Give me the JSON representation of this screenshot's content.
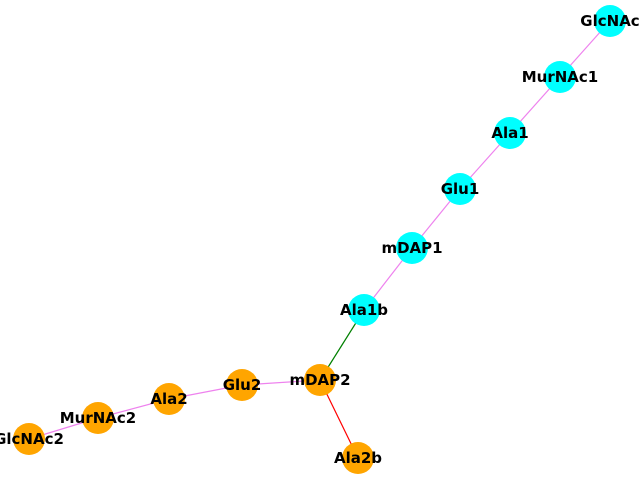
{
  "graph": {
    "nodes": [
      {
        "id": "GlcNAc1",
        "label": "GlcNAc",
        "color": "#00ffff"
      },
      {
        "id": "MurNAc1",
        "label": "MurNAc1",
        "color": "#00ffff"
      },
      {
        "id": "Ala1",
        "label": "Ala1",
        "color": "#00ffff"
      },
      {
        "id": "Glu1",
        "label": "Glu1",
        "color": "#00ffff"
      },
      {
        "id": "mDAP1",
        "label": "mDAP1",
        "color": "#00ffff"
      },
      {
        "id": "Ala1b",
        "label": "Ala1b",
        "color": "#00ffff"
      },
      {
        "id": "mDAP2",
        "label": "mDAP2",
        "color": "#ffa500"
      },
      {
        "id": "Glu2",
        "label": "Glu2",
        "color": "#ffa500"
      },
      {
        "id": "Ala2",
        "label": "Ala2",
        "color": "#ffa500"
      },
      {
        "id": "MurNAc2",
        "label": "MurNAc2",
        "color": "#ffa500"
      },
      {
        "id": "GlcNAc2",
        "label": "GlcNAc2",
        "color": "#ffa500"
      },
      {
        "id": "Ala2b",
        "label": "Ala2b",
        "color": "#ffa500"
      }
    ],
    "edges": [
      {
        "source": "GlcNAc1",
        "target": "MurNAc1",
        "color": "#ee82ee"
      },
      {
        "source": "MurNAc1",
        "target": "Ala1",
        "color": "#ee82ee"
      },
      {
        "source": "Ala1",
        "target": "Glu1",
        "color": "#ee82ee"
      },
      {
        "source": "Glu1",
        "target": "mDAP1",
        "color": "#ee82ee"
      },
      {
        "source": "mDAP1",
        "target": "Ala1b",
        "color": "#ee82ee"
      },
      {
        "source": "Ala1b",
        "target": "mDAP2",
        "color": "#008000"
      },
      {
        "source": "mDAP2",
        "target": "Glu2",
        "color": "#ee82ee"
      },
      {
        "source": "Glu2",
        "target": "Ala2",
        "color": "#ee82ee"
      },
      {
        "source": "Ala2",
        "target": "MurNAc2",
        "color": "#ee82ee"
      },
      {
        "source": "MurNAc2",
        "target": "GlcNAc2",
        "color": "#ee82ee"
      },
      {
        "source": "mDAP2",
        "target": "Ala2b",
        "color": "#ff0000"
      }
    ]
  }
}
